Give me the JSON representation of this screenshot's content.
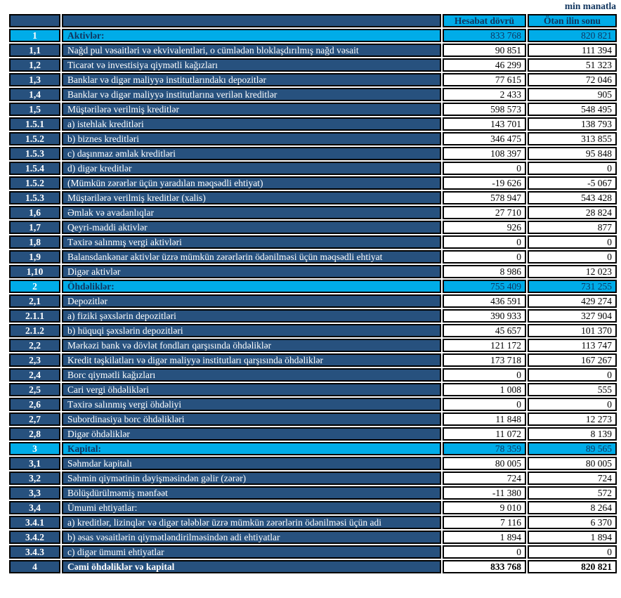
{
  "unit_note": "min manatla",
  "colors": {
    "cyan": "#00ace8",
    "navy": "#27517e",
    "navy_text": "#10355e"
  },
  "table": {
    "columns": [
      "Hesabat dövrü",
      "Ötən ilin sonu"
    ],
    "rows": [
      {
        "num": "1",
        "label": "Aktivlər:",
        "v1": "833 768",
        "v2": "820 821",
        "type": "section"
      },
      {
        "num": "1,1",
        "label": "Nağd pul vəsaitləri və  ekvivalentləri, o cümlədən bloklaşdırılmış nağd vəsait",
        "v1": "90 851",
        "v2": "111 394",
        "type": "item"
      },
      {
        "num": "1,2",
        "label": "Ticarət və investisiya qiymətli kağızları",
        "v1": "46 299",
        "v2": "51 323",
        "type": "item"
      },
      {
        "num": "1,3",
        "label": "Banklar və digər maliyyə institutlarındakı depozitlər",
        "v1": "77 615",
        "v2": "72 046",
        "type": "item"
      },
      {
        "num": "1,4",
        "label": "Banklar və digər maliyyə institutlarına verilən kreditlər",
        "v1": "2 433",
        "v2": "905",
        "type": "item"
      },
      {
        "num": "1,5",
        "label": "Müştərilərə verilmiş kreditlər",
        "v1": "598 573",
        "v2": "548 495",
        "type": "item"
      },
      {
        "num": "1.5.1",
        "label": "a) istehlak kreditləri",
        "v1": "143 701",
        "v2": "138 793",
        "type": "item"
      },
      {
        "num": "1.5.2",
        "label": "b) biznes kreditləri",
        "v1": "346 475",
        "v2": "313 855",
        "type": "item"
      },
      {
        "num": "1.5.3",
        "label": "c) daşınmaz əmlak kreditləri",
        "v1": "108 397",
        "v2": "95 848",
        "type": "item"
      },
      {
        "num": "1.5.4",
        "label": "d) digər kreditlər",
        "v1": "0",
        "v2": "0",
        "type": "item"
      },
      {
        "num": "1.5.2",
        "label": "(Mümkün zərərlər üçün yaradılan məqsədli ehtiyat)",
        "v1": "-19 626",
        "v2": "-5 067",
        "type": "item"
      },
      {
        "num": "1.5.3",
        "label": "Müştərilərə verilmiş kreditlər (xalis)",
        "v1": "578 947",
        "v2": "543 428",
        "type": "item"
      },
      {
        "num": "1,6",
        "label": "Əmlak və avadanlıqlar",
        "v1": "27 710",
        "v2": "28 824",
        "type": "item"
      },
      {
        "num": "1,7",
        "label": "Qeyri-maddi aktivlər",
        "v1": "926",
        "v2": "877",
        "type": "item"
      },
      {
        "num": "1,8",
        "label": "Təxirə salınmış vergi aktivləri",
        "v1": "0",
        "v2": "0",
        "type": "item"
      },
      {
        "num": "1,9",
        "label": "Balansdankənar aktivlər üzrə mümkün zərərlərin ödənilməsi üçün məqsədli ehtiyat",
        "v1": "0",
        "v2": "0",
        "type": "item"
      },
      {
        "num": "1,10",
        "label": "Digər aktivlər",
        "v1": "8 986",
        "v2": "12 023",
        "type": "item"
      },
      {
        "num": "2",
        "label": "Öhdəliklər:",
        "v1": "755 409",
        "v2": "731 255",
        "type": "section"
      },
      {
        "num": "2,1",
        "label": "Depozitlər",
        "v1": "436 591",
        "v2": "429 274",
        "type": "item"
      },
      {
        "num": "2.1.1",
        "label": "a) fiziki şəxslərin depozitləri",
        "v1": "390 933",
        "v2": "327 904",
        "type": "item"
      },
      {
        "num": "2.1.2",
        "label": "b) hüquqi şəxslərin depozitləri",
        "v1": "45 657",
        "v2": "101 370",
        "type": "item"
      },
      {
        "num": "2,2",
        "label": "Mərkəzi bank və dövlət fondları qarşısında öhdəliklər",
        "v1": "121 172",
        "v2": "113 747",
        "type": "item"
      },
      {
        "num": "2,3",
        "label": "Kredit təşkilatları və digər maliyyə institutları qarşısında öhdəliklər",
        "v1": "173 718",
        "v2": "167 267",
        "type": "item"
      },
      {
        "num": "2,4",
        "label": "Borc qiymətli kağızları",
        "v1": "0",
        "v2": "0",
        "type": "item"
      },
      {
        "num": "2,5",
        "label": "Cari vergi öhdəlikləri",
        "v1": "1 008",
        "v2": "555",
        "type": "item"
      },
      {
        "num": "2,6",
        "label": "Təxirə salınmış vergi öhdəliyi",
        "v1": "0",
        "v2": "0",
        "type": "item"
      },
      {
        "num": "2,7",
        "label": "Subordinasiya borc öhdəlikləri",
        "v1": "11 848",
        "v2": "12 273",
        "type": "item"
      },
      {
        "num": "2,8",
        "label": "Digər öhdəliklər",
        "v1": "11 072",
        "v2": "8 139",
        "type": "item"
      },
      {
        "num": "3",
        "label": "Kapital:",
        "v1": "78 359",
        "v2": "89 565",
        "type": "section"
      },
      {
        "num": "3,1",
        "label": "Səhmdar kapitalı",
        "v1": "80 005",
        "v2": "80 005",
        "type": "item"
      },
      {
        "num": "3,2",
        "label": "Səhmin qiymətinin dəyişməsindən gəlir (zərər)",
        "v1": "724",
        "v2": "724",
        "type": "item"
      },
      {
        "num": "3,3",
        "label": "Bölüşdürülməmiş mənfəət",
        "v1": "-11 380",
        "v2": "572",
        "type": "item"
      },
      {
        "num": "3,4",
        "label": "Ümumi ehtiyatlar:",
        "v1": "9 010",
        "v2": "8 264",
        "type": "item"
      },
      {
        "num": "3.4.1",
        "label": "a) kreditlər, lizinqlər və digər tələblər üzrə mümkün zərərlərin ödənilməsi üçün adi",
        "v1": "7 116",
        "v2": "6 370",
        "type": "item"
      },
      {
        "num": "3.4.2",
        "label": "b) əsas vəsaitlərin qiymətləndirilməsindən adi ehtiyatlar",
        "v1": "1 894",
        "v2": "1 894",
        "type": "item"
      },
      {
        "num": "3.4.3",
        "label": "c) digər ümumi ehtiyatlar",
        "v1": "0",
        "v2": "0",
        "type": "item"
      },
      {
        "num": "4",
        "label": "Cəmi öhdəliklər və kapital",
        "v1": "833 768",
        "v2": "820 821",
        "type": "total"
      }
    ]
  }
}
